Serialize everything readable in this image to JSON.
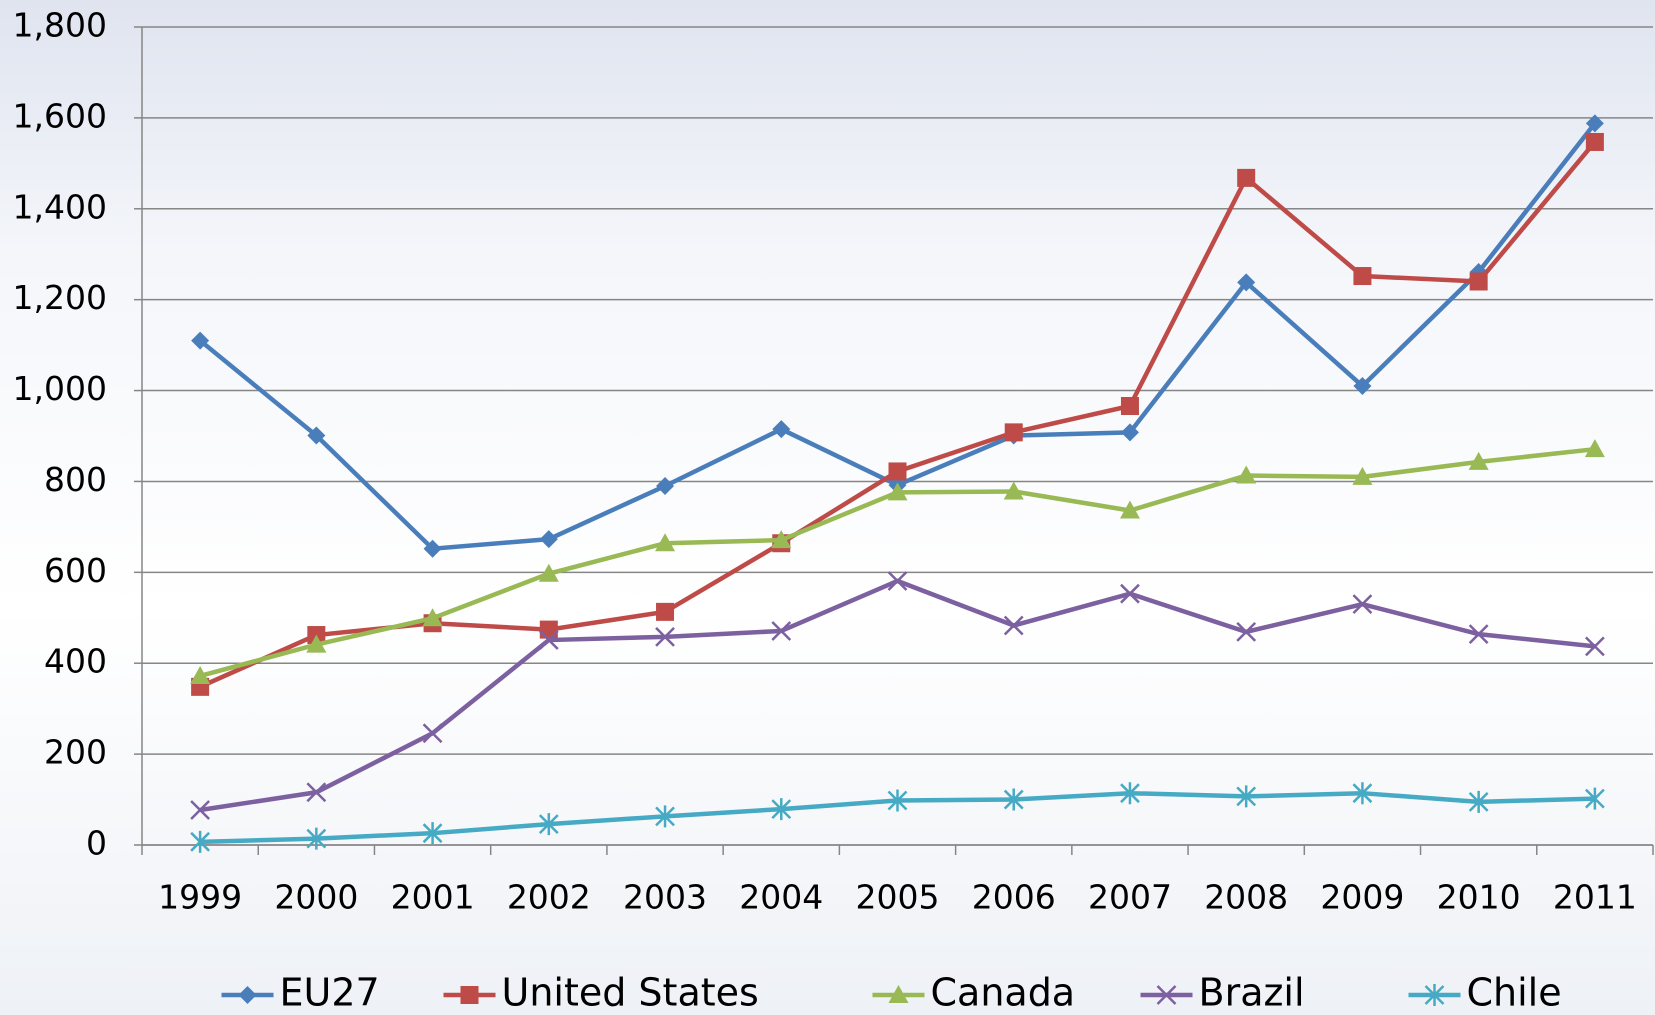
{
  "chart_data": {
    "type": "line",
    "categories": [
      "1999",
      "2000",
      "2001",
      "2002",
      "2003",
      "2004",
      "2005",
      "2006",
      "2007",
      "2008",
      "2009",
      "2010",
      "2011"
    ],
    "series": [
      {
        "name": "EU27",
        "color": "#4a7ebb",
        "marker": "diamond",
        "values": [
          1110,
          901,
          652,
          673,
          790,
          915,
          792,
          901,
          908,
          1238,
          1010,
          1261,
          1588
        ]
      },
      {
        "name": "United States",
        "color": "#be4b48",
        "marker": "square",
        "values": [
          348,
          462,
          488,
          474,
          513,
          664,
          822,
          908,
          966,
          1468,
          1252,
          1240,
          1547
        ]
      },
      {
        "name": "Canada",
        "color": "#98b954",
        "marker": "triangle",
        "values": [
          372,
          441,
          499,
          597,
          664,
          671,
          776,
          778,
          736,
          813,
          810,
          843,
          871
        ]
      },
      {
        "name": "Brazil",
        "color": "#7d60a0",
        "marker": "x",
        "values": [
          77,
          116,
          246,
          451,
          458,
          471,
          581,
          483,
          553,
          469,
          530,
          464,
          437
        ]
      },
      {
        "name": "Chile",
        "color": "#46aac5",
        "marker": "star",
        "values": [
          7,
          14,
          26,
          46,
          63,
          79,
          98,
          100,
          114,
          107,
          114,
          95,
          102
        ]
      }
    ],
    "ylim": [
      0,
      1800
    ],
    "yticks": [
      0,
      200,
      400,
      600,
      800,
      {
        "value": 1000,
        "label": "1,000"
      },
      {
        "value": 1200,
        "label": "1,200"
      },
      {
        "value": 1400,
        "label": "1,400"
      },
      {
        "value": 1600,
        "label": "1,600"
      },
      {
        "value": 1800,
        "label": "1,800"
      }
    ],
    "grid": true,
    "legend": "bottom"
  }
}
